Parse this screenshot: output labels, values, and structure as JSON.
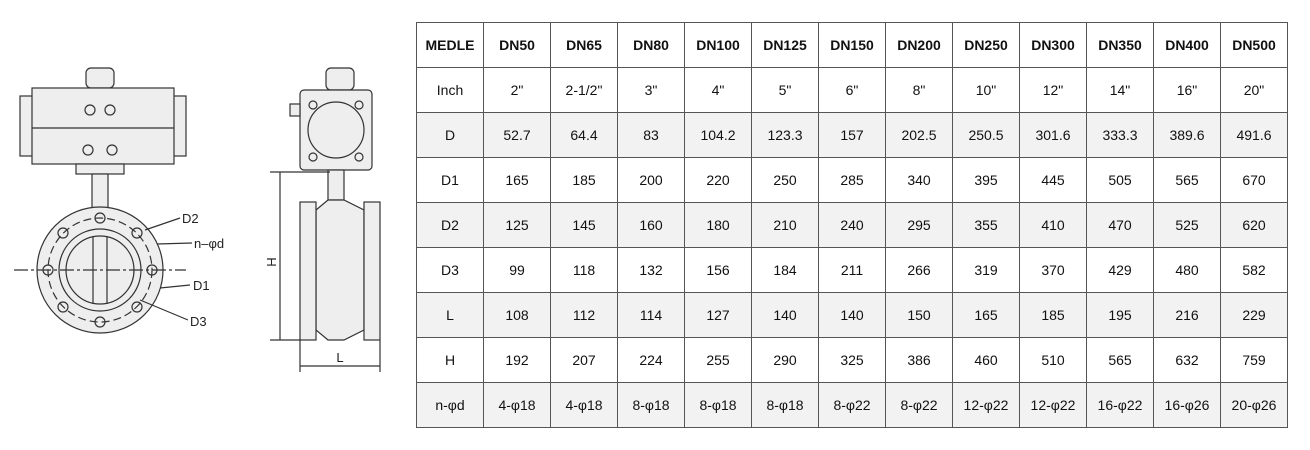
{
  "drawing": {
    "labels": [
      "D2",
      "n–φd",
      "D1",
      "D3",
      "H",
      "L"
    ]
  },
  "table": {
    "header": [
      "MEDLE",
      "DN50",
      "DN65",
      "DN80",
      "DN100",
      "DN125",
      "DN150",
      "DN200",
      "DN250",
      "DN300",
      "DN350",
      "DN400",
      "DN500"
    ],
    "rows": [
      [
        "Inch",
        "2\"",
        "2-1/2\"",
        "3\"",
        "4\"",
        "5\"",
        "6\"",
        "8\"",
        "10\"",
        "12\"",
        "14\"",
        "16\"",
        "20\""
      ],
      [
        "D",
        "52.7",
        "64.4",
        "83",
        "104.2",
        "123.3",
        "157",
        "202.5",
        "250.5",
        "301.6",
        "333.3",
        "389.6",
        "491.6"
      ],
      [
        "D1",
        "165",
        "185",
        "200",
        "220",
        "250",
        "285",
        "340",
        "395",
        "445",
        "505",
        "565",
        "670"
      ],
      [
        "D2",
        "125",
        "145",
        "160",
        "180",
        "210",
        "240",
        "295",
        "355",
        "410",
        "470",
        "525",
        "620"
      ],
      [
        "D3",
        "99",
        "118",
        "132",
        "156",
        "184",
        "211",
        "266",
        "319",
        "370",
        "429",
        "480",
        "582"
      ],
      [
        "L",
        "108",
        "112",
        "114",
        "127",
        "140",
        "140",
        "150",
        "165",
        "185",
        "195",
        "216",
        "229"
      ],
      [
        "H",
        "192",
        "207",
        "224",
        "255",
        "290",
        "325",
        "386",
        "460",
        "510",
        "565",
        "632",
        "759"
      ],
      [
        "n-φd",
        "4-φ18",
        "4-φ18",
        "8-φ18",
        "8-φ18",
        "8-φ18",
        "8-φ22",
        "8-φ22",
        "12-φ22",
        "12-φ22",
        "16-φ22",
        "16-φ26",
        "20-φ26"
      ]
    ]
  }
}
